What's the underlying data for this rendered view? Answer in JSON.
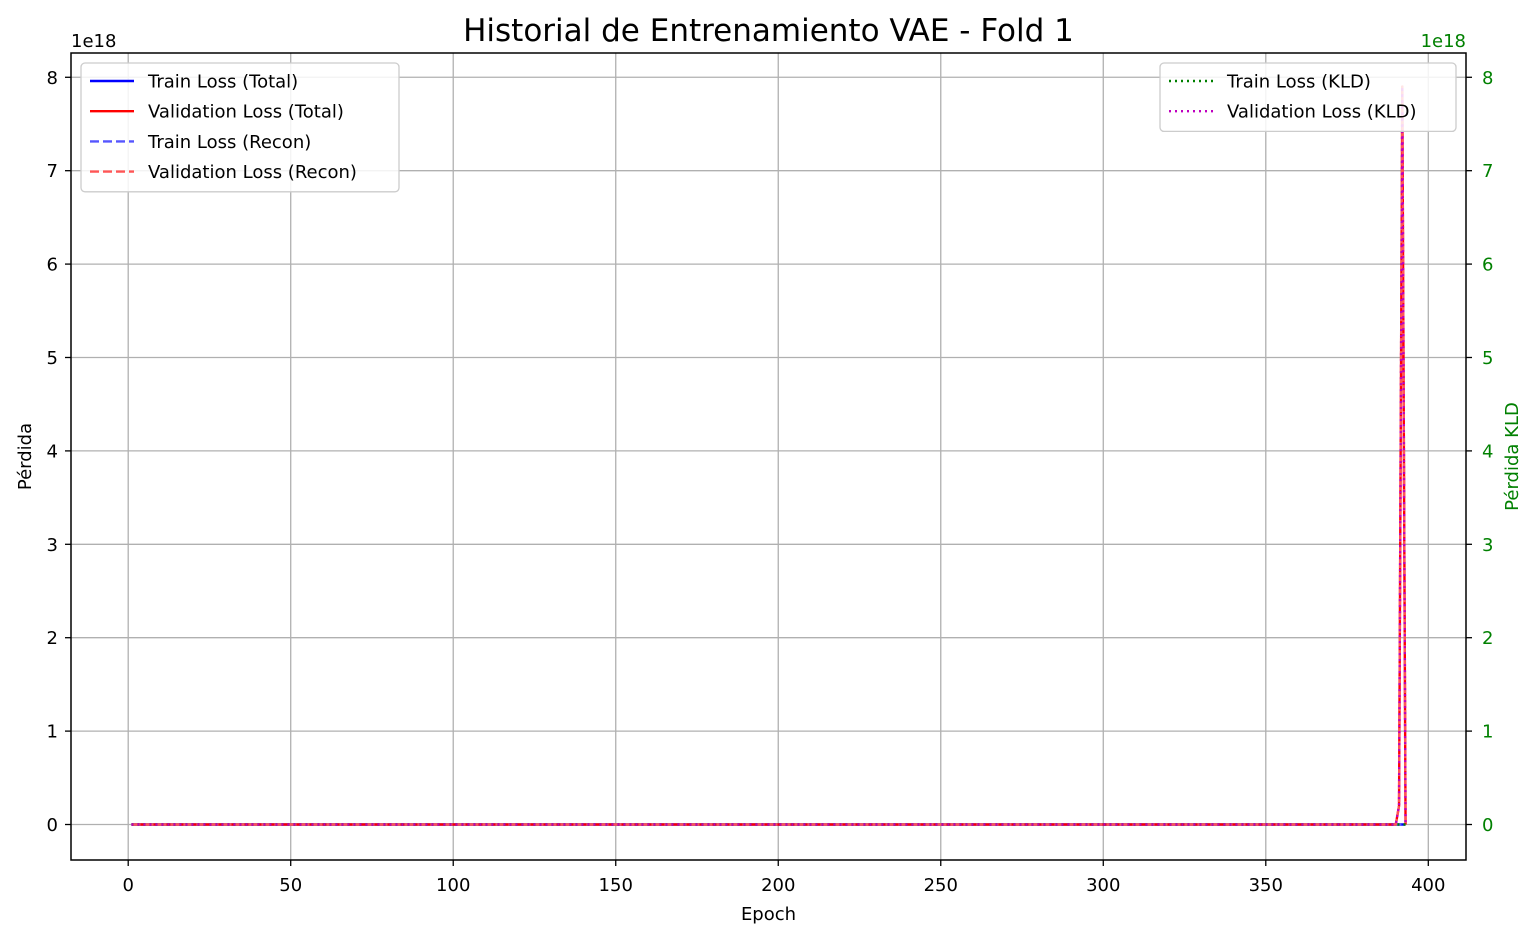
{
  "chart_data": {
    "type": "line",
    "title": "Historial de Entrenamiento VAE - Fold 1",
    "xlabel": "Epoch",
    "ylabel": "Pérdida",
    "y2label": "Pérdida KLD",
    "y_offset_label": "1e18",
    "y2_offset_label": "1e18",
    "xlim": [
      -17.6,
      411.6
    ],
    "ylim": [
      -0.38,
      8.26
    ],
    "y2lim": [
      -0.38,
      8.26
    ],
    "xticks": [
      0,
      50,
      100,
      150,
      200,
      250,
      300,
      350,
      400
    ],
    "yticks": [
      0,
      1,
      2,
      3,
      4,
      5,
      6,
      7,
      8
    ],
    "y2ticks": [
      0,
      1,
      2,
      3,
      4,
      5,
      6,
      7,
      8
    ],
    "grid": true,
    "y_unit_multiplier": "1e18",
    "legend_left_placement": "upper-left",
    "legend_right_placement": "upper-right",
    "series": [
      {
        "name": "Train Loss (Total)",
        "axis": "left",
        "color": "#0000ff",
        "style": "solid",
        "x": [
          1,
          390,
          393
        ],
        "y": [
          0,
          0,
          0
        ]
      },
      {
        "name": "Validation Loss (Total)",
        "axis": "left",
        "color": "#ff0000",
        "style": "solid",
        "x": [
          1,
          390,
          391,
          392,
          393
        ],
        "y": [
          0,
          0,
          0.2,
          7.9,
          0
        ]
      },
      {
        "name": "Train Loss (Recon)",
        "axis": "left",
        "color": "#5555ff",
        "style": "dashed",
        "x": [
          1,
          390,
          393
        ],
        "y": [
          0,
          0,
          0
        ]
      },
      {
        "name": "Validation Loss (Recon)",
        "axis": "left",
        "color": "#ff5555",
        "style": "dashed",
        "x": [
          1,
          390,
          391,
          392,
          393
        ],
        "y": [
          0,
          0,
          0.2,
          7.9,
          0
        ]
      },
      {
        "name": "Train Loss (KLD)",
        "axis": "right",
        "color": "#008000",
        "style": "dotted",
        "x": [
          1,
          390,
          393
        ],
        "y": [
          0,
          0,
          0
        ]
      },
      {
        "name": "Validation Loss (KLD)",
        "axis": "right",
        "color": "#bf00bf",
        "style": "dotted",
        "x": [
          1,
          390,
          391,
          392,
          393
        ],
        "y": [
          0,
          0,
          0.2,
          7.9,
          0
        ]
      }
    ],
    "legend_left": [
      "Train Loss (Total)",
      "Validation Loss (Total)",
      "Train Loss (Recon)",
      "Validation Loss (Recon)"
    ],
    "legend_right": [
      "Train Loss (KLD)",
      "Validation Loss (KLD)"
    ],
    "colors": {
      "right_axis": "#008000",
      "grid": "#b0b0b0"
    }
  }
}
